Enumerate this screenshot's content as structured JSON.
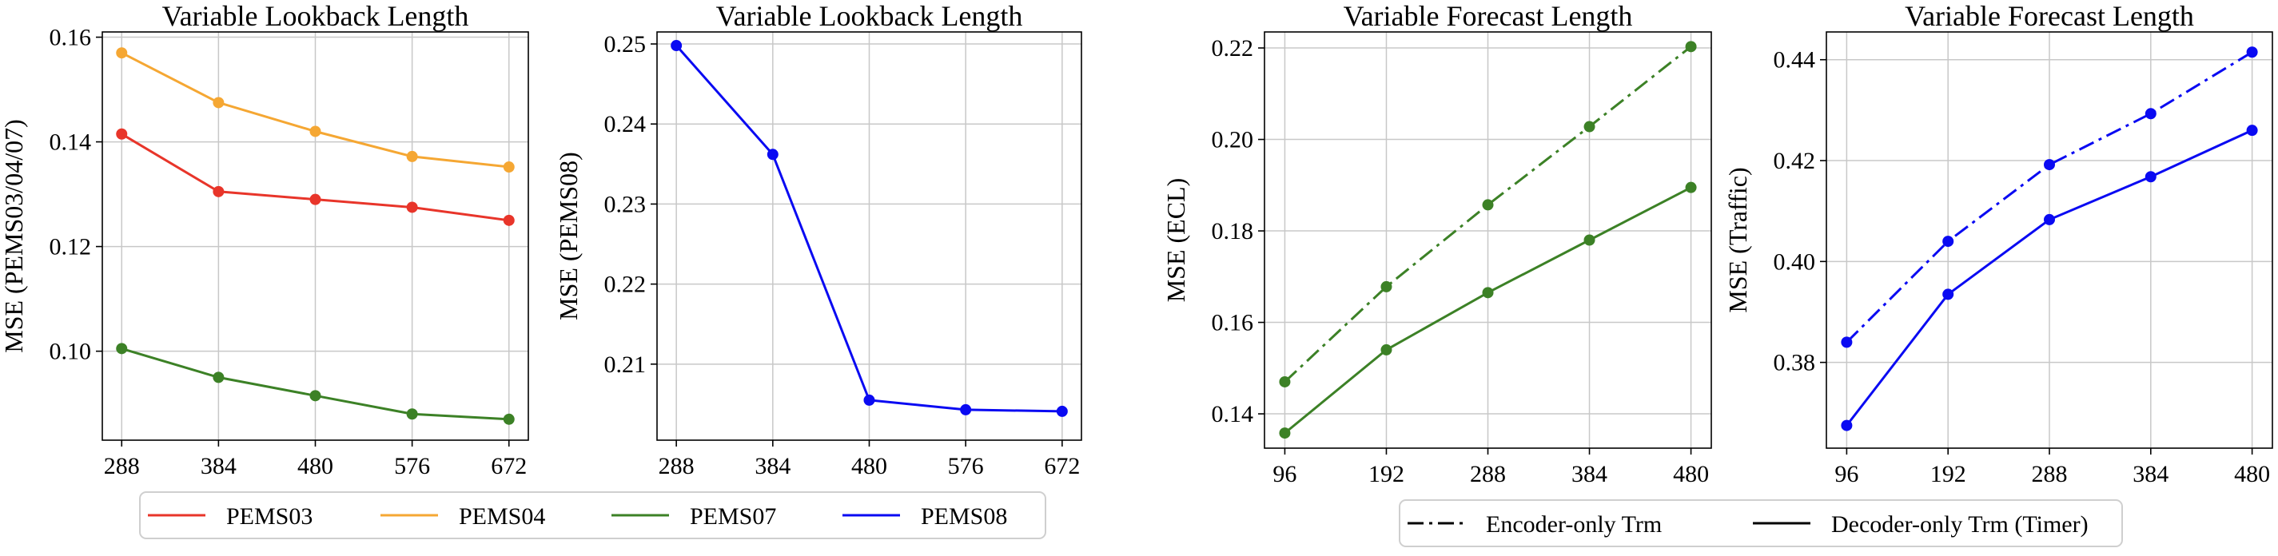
{
  "colors": {
    "PEMS03": "#e8352a",
    "PEMS04": "#f5a733",
    "PEMS07": "#3c8126",
    "PEMS08": "#0a0af2",
    "ECL": "#3c8126",
    "Traffic": "#0a0af2",
    "grid": "#c8c8c8",
    "axis": "#000000"
  },
  "legend_left": [
    {
      "name": "PEMS03",
      "color_key": "PEMS03"
    },
    {
      "name": "PEMS04",
      "color_key": "PEMS04"
    },
    {
      "name": "PEMS07",
      "color_key": "PEMS07"
    },
    {
      "name": "PEMS08",
      "color_key": "PEMS08"
    }
  ],
  "legend_right": [
    {
      "name": "Encoder-only Trm",
      "style": "dashdot"
    },
    {
      "name": "Decoder-only Trm (Timer)",
      "style": "solid"
    }
  ],
  "chart_data": [
    {
      "type": "line",
      "title": "Variable Lookback Length",
      "xlabel": "",
      "ylabel": "MSE (PEMS03/04/07)",
      "x": [
        288,
        384,
        480,
        576,
        672
      ],
      "xticks": [
        "288",
        "384",
        "480",
        "576",
        "672"
      ],
      "ylim": [
        0.083,
        0.161
      ],
      "yticks": [
        0.1,
        0.12,
        0.14,
        0.16
      ],
      "ytick_labels": [
        "0.10",
        "0.12",
        "0.14",
        "0.16"
      ],
      "grid": true,
      "series": [
        {
          "name": "PEMS03",
          "color_key": "PEMS03",
          "style": "solid",
          "values": [
            0.1415,
            0.1305,
            0.129,
            0.1275,
            0.125
          ]
        },
        {
          "name": "PEMS04",
          "color_key": "PEMS04",
          "style": "solid",
          "values": [
            0.157,
            0.1475,
            0.142,
            0.1372,
            0.1352
          ]
        },
        {
          "name": "PEMS07",
          "color_key": "PEMS07",
          "style": "solid",
          "values": [
            0.1005,
            0.095,
            0.0915,
            0.088,
            0.087
          ]
        }
      ]
    },
    {
      "type": "line",
      "title": "Variable Lookback Length",
      "xlabel": "",
      "ylabel": "MSE (PEMS08)",
      "x": [
        288,
        384,
        480,
        576,
        672
      ],
      "xticks": [
        "288",
        "384",
        "480",
        "576",
        "672"
      ],
      "ylim": [
        0.2005,
        0.2515
      ],
      "yticks": [
        0.21,
        0.22,
        0.23,
        0.24,
        0.25
      ],
      "ytick_labels": [
        "0.21",
        "0.22",
        "0.23",
        "0.24",
        "0.25"
      ],
      "grid": true,
      "series": [
        {
          "name": "PEMS08",
          "color_key": "PEMS08",
          "style": "solid",
          "values": [
            0.2498,
            0.2362,
            0.2055,
            0.2043,
            0.2041
          ]
        }
      ]
    },
    {
      "type": "line",
      "title": "Variable Forecast Length",
      "xlabel": "",
      "ylabel": "MSE (ECL)",
      "x": [
        96,
        192,
        288,
        384,
        480
      ],
      "xticks": [
        "96",
        "192",
        "288",
        "384",
        "480"
      ],
      "ylim": [
        0.1325,
        0.2235
      ],
      "yticks": [
        0.14,
        0.16,
        0.18,
        0.2,
        0.22
      ],
      "ytick_labels": [
        "0.14",
        "0.16",
        "0.18",
        "0.20",
        "0.22"
      ],
      "grid": true,
      "series": [
        {
          "name": "Encoder-only Trm",
          "color_key": "ECL",
          "style": "dashdot",
          "values": [
            0.147,
            0.1678,
            0.1857,
            0.2028,
            0.2203
          ]
        },
        {
          "name": "Decoder-only Trm (Timer)",
          "color_key": "ECL",
          "style": "solid",
          "values": [
            0.1358,
            0.154,
            0.1665,
            0.178,
            0.1895
          ]
        }
      ]
    },
    {
      "type": "line",
      "title": "Variable Forecast Length",
      "xlabel": "",
      "ylabel": "MSE (Traffic)",
      "x": [
        96,
        192,
        288,
        384,
        480
      ],
      "xticks": [
        "96",
        "192",
        "288",
        "384",
        "480"
      ],
      "ylim": [
        0.363,
        0.4455
      ],
      "yticks": [
        0.38,
        0.4,
        0.42,
        0.44
      ],
      "ytick_labels": [
        "0.38",
        "0.40",
        "0.42",
        "0.44"
      ],
      "grid": true,
      "series": [
        {
          "name": "Encoder-only Trm",
          "color_key": "Traffic",
          "style": "dashdot",
          "values": [
            0.384,
            0.404,
            0.4192,
            0.4293,
            0.4415
          ]
        },
        {
          "name": "Decoder-only Trm (Timer)",
          "color_key": "Traffic",
          "style": "solid",
          "values": [
            0.3675,
            0.3935,
            0.4083,
            0.4168,
            0.426
          ]
        }
      ]
    }
  ]
}
